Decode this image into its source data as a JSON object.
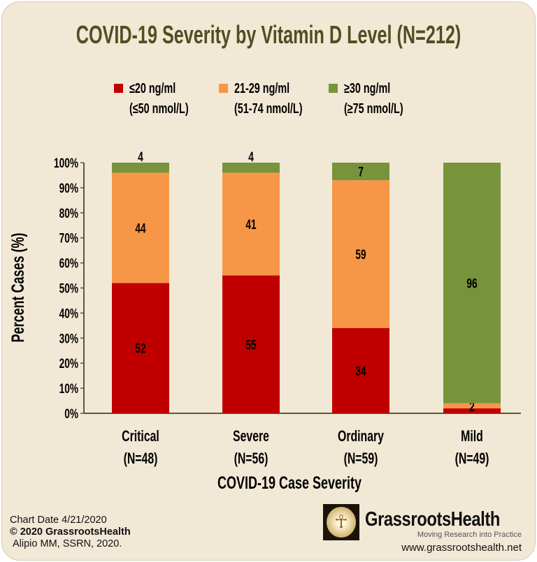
{
  "chart_data": {
    "type": "bar",
    "stacked": true,
    "title": "COVID-19 Severity by Vitamin D Level (N=212)",
    "xlabel": "COVID-19 Case Severity",
    "ylabel": "Percent Cases (%)",
    "ylim": [
      0,
      100
    ],
    "yticks": [
      "0%",
      "10%",
      "20%",
      "30%",
      "40%",
      "50%",
      "60%",
      "70%",
      "80%",
      "90%",
      "100%"
    ],
    "categories": [
      {
        "name": "Critical",
        "n": "(N=48)"
      },
      {
        "name": "Severe",
        "n": "(N=56)"
      },
      {
        "name": "Ordinary",
        "n": "(N=59)"
      },
      {
        "name": "Mild",
        "n": "(N=49)"
      }
    ],
    "series": [
      {
        "name": "≤20 ng/ml",
        "sub": "(≤50 nmol/L)",
        "color": "#c00000",
        "values": [
          52,
          55,
          34,
          2
        ],
        "labels": [
          "52",
          "55",
          "34",
          ""
        ]
      },
      {
        "name": "21-29 ng/ml",
        "sub": "(51-74 nmol/L)",
        "color": "#f79646",
        "values": [
          44,
          41,
          59,
          2
        ],
        "labels": [
          "44",
          "41",
          "59",
          "2"
        ]
      },
      {
        "name": "≥30 ng/ml",
        "sub": "(≥75 nmol/L)",
        "color": "#77933c",
        "values": [
          4,
          4,
          7,
          96
        ],
        "labels": [
          "4",
          "4",
          "7",
          "96"
        ]
      }
    ],
    "legend": "top",
    "grid": false
  },
  "footer": {
    "date": "Chart Date 4/21/2020",
    "copyright": "© 2020 GrassrootsHealth",
    "citation": "Alipio MM, SSRN, 2020.",
    "brand": "GrassrootsHealth",
    "tagline": "Moving Research into Practice",
    "url": "www.grassrootshealth.net"
  },
  "colors": {
    "background": "#f2e8d6",
    "title": "#4f4f22",
    "axis": "#5a5a3a"
  }
}
